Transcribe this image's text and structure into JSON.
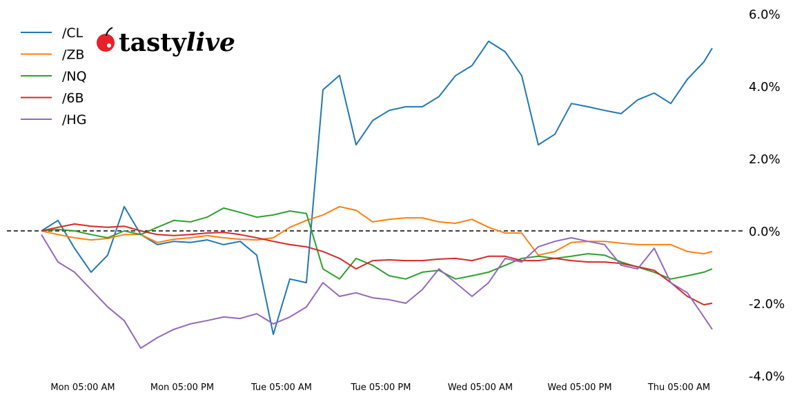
{
  "chart_data": {
    "type": "line",
    "title": "",
    "xlabel": "",
    "ylabel": "",
    "y_axis_position": "right",
    "ylim": [
      -4.0,
      6.0
    ],
    "yticks": [
      "6.0%",
      "4.0%",
      "2.0%",
      "0.0%",
      "-2.0%",
      "-4.0%"
    ],
    "ytick_values": [
      6,
      4,
      2,
      0,
      -2,
      -4
    ],
    "xticks": [
      "Mon 05:00 AM",
      "Mon 05:00 PM",
      "Tue 05:00 AM",
      "Tue 05:00 PM",
      "Wed 05:00 AM",
      "Wed 05:00 PM",
      "Thu 05:00 AM"
    ],
    "xtick_times": [
      "Mon 05:00",
      "Mon 17:00",
      "Tue 05:00",
      "Tue 17:00",
      "Wed 05:00",
      "Wed 17:00",
      "Thu 05:00"
    ],
    "reference_line": {
      "value": 0,
      "style": "dashed",
      "color": "#000000"
    },
    "grid": false,
    "legend_position": "top-left",
    "x": [
      "Mon 00:00",
      "Mon 02:00",
      "Mon 04:00",
      "Mon 06:00",
      "Mon 08:00",
      "Mon 10:00",
      "Mon 12:00",
      "Mon 14:00",
      "Mon 16:00",
      "Mon 18:00",
      "Mon 20:00",
      "Mon 22:00",
      "Tue 00:00",
      "Tue 02:00",
      "Tue 04:00",
      "Tue 06:00",
      "Tue 08:00",
      "Tue 10:00",
      "Tue 12:00",
      "Tue 14:00",
      "Tue 16:00",
      "Tue 18:00",
      "Tue 20:00",
      "Tue 22:00",
      "Wed 00:00",
      "Wed 02:00",
      "Wed 04:00",
      "Wed 06:00",
      "Wed 08:00",
      "Wed 10:00",
      "Wed 12:00",
      "Wed 14:00",
      "Wed 16:00",
      "Wed 18:00",
      "Wed 20:00",
      "Wed 22:00",
      "Thu 00:00",
      "Thu 02:00",
      "Thu 04:00",
      "Thu 06:00",
      "Thu 08:00",
      "Thu 09:00"
    ],
    "series": [
      {
        "name": "/CL",
        "color": "#1f77b4",
        "values": [
          0,
          0.29,
          -0.48,
          -1.14,
          -0.67,
          0.67,
          -0.1,
          -0.38,
          -0.29,
          -0.32,
          -0.25,
          -0.38,
          -0.29,
          -0.67,
          -2.86,
          -1.33,
          -1.43,
          3.9,
          4.3,
          2.38,
          3.05,
          3.33,
          3.43,
          3.43,
          3.71,
          4.29,
          4.57,
          5.24,
          4.95,
          4.29,
          2.38,
          2.67,
          3.52,
          3.43,
          3.33,
          3.24,
          3.62,
          3.81,
          3.52,
          4.19,
          4.67,
          5.05
        ]
      },
      {
        "name": "/ZB",
        "color": "#ff7f0e",
        "values": [
          0,
          -0.1,
          -0.19,
          -0.25,
          -0.21,
          -0.1,
          -0.1,
          -0.32,
          -0.23,
          -0.19,
          -0.13,
          -0.19,
          -0.23,
          -0.25,
          -0.19,
          0.1,
          0.29,
          0.44,
          0.67,
          0.57,
          0.25,
          0.32,
          0.36,
          0.36,
          0.25,
          0.21,
          0.32,
          0.1,
          -0.06,
          -0.06,
          -0.67,
          -0.57,
          -0.32,
          -0.29,
          -0.29,
          -0.34,
          -0.38,
          -0.38,
          -0.38,
          -0.57,
          -0.63,
          -0.57
        ]
      },
      {
        "name": "/NQ",
        "color": "#2ca02c",
        "values": [
          0,
          0.04,
          0,
          -0.1,
          -0.19,
          0,
          -0.1,
          0.1,
          0.29,
          0.25,
          0.38,
          0.63,
          0.51,
          0.38,
          0.44,
          0.55,
          0.48,
          -1.05,
          -1.33,
          -0.76,
          -0.95,
          -1.24,
          -1.33,
          -1.14,
          -1.09,
          -1.33,
          -1.24,
          -1.14,
          -0.95,
          -0.76,
          -0.7,
          -0.76,
          -0.7,
          -0.63,
          -0.67,
          -0.86,
          -1.0,
          -1.14,
          -1.33,
          -1.24,
          -1.14,
          -1.05
        ]
      },
      {
        "name": "/6B",
        "color": "#d62728",
        "values": [
          0,
          0.1,
          0.19,
          0.13,
          0.1,
          0.13,
          0,
          -0.1,
          -0.13,
          -0.1,
          -0.06,
          -0.04,
          -0.1,
          -0.19,
          -0.29,
          -0.38,
          -0.44,
          -0.57,
          -0.76,
          -1.05,
          -0.82,
          -0.8,
          -0.82,
          -0.82,
          -0.78,
          -0.76,
          -0.82,
          -0.7,
          -0.7,
          -0.82,
          -0.82,
          -0.76,
          -0.82,
          -0.86,
          -0.86,
          -0.9,
          -0.99,
          -1.09,
          -1.43,
          -1.81,
          -2.04,
          -2.0
        ]
      },
      {
        "name": "/HG",
        "color": "#9467bd",
        "values": [
          -0.1,
          -0.86,
          -1.14,
          -1.62,
          -2.1,
          -2.48,
          -3.24,
          -2.95,
          -2.72,
          -2.57,
          -2.48,
          -2.38,
          -2.42,
          -2.29,
          -2.57,
          -2.38,
          -2.1,
          -1.43,
          -1.81,
          -1.71,
          -1.85,
          -1.9,
          -2.0,
          -1.62,
          -1.05,
          -1.43,
          -1.81,
          -1.43,
          -0.76,
          -0.86,
          -0.44,
          -0.29,
          -0.19,
          -0.29,
          -0.38,
          -0.95,
          -1.05,
          -0.48,
          -1.43,
          -1.71,
          -2.38,
          -2.72
        ]
      }
    ]
  },
  "logo": {
    "text_a": "tasty",
    "text_b": "live",
    "cherry_color": "#e8202a"
  }
}
